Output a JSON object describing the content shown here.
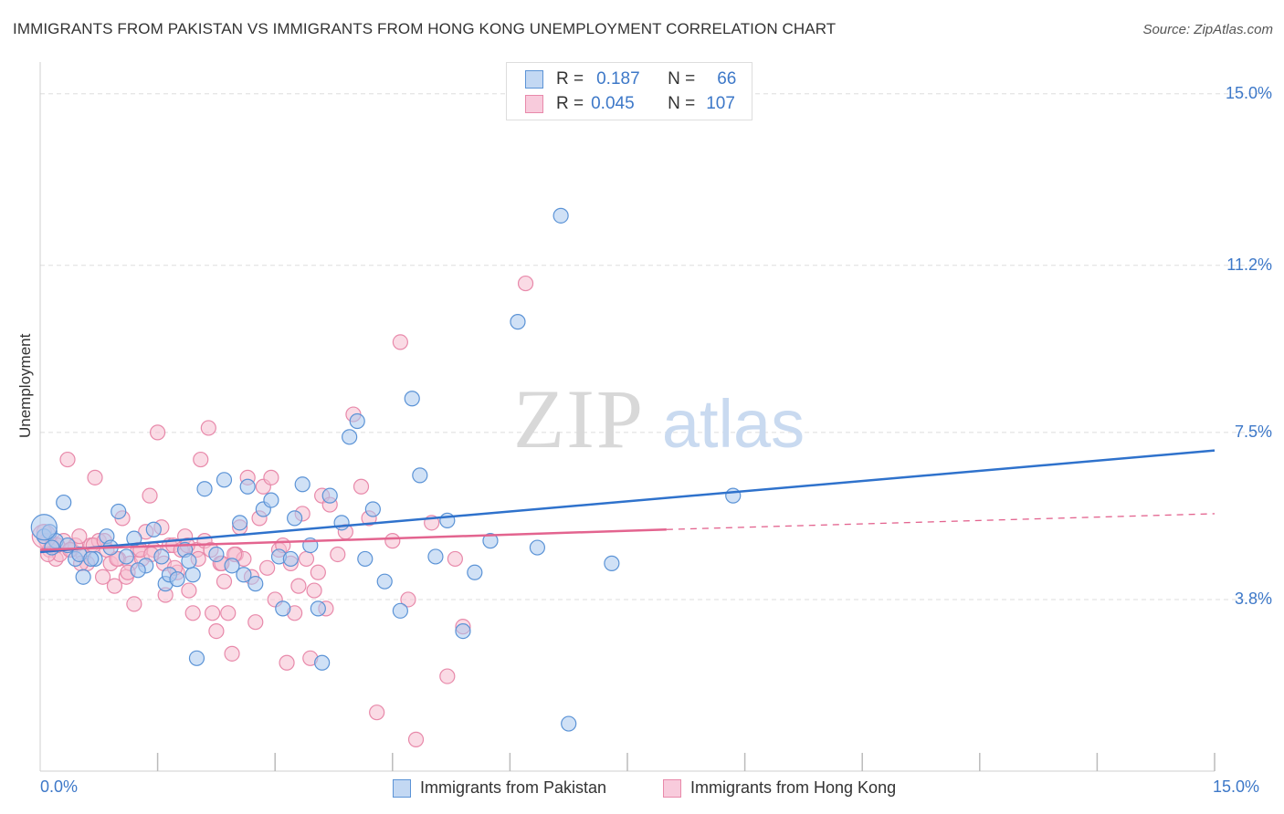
{
  "title": "IMMIGRANTS FROM PAKISTAN VS IMMIGRANTS FROM HONG KONG UNEMPLOYMENT CORRELATION CHART",
  "source": "Source: ZipAtlas.com",
  "watermark": {
    "zip": "ZIP",
    "atlas": "atlas"
  },
  "stats": {
    "pakistan": {
      "r_label": "R =",
      "r_value": "0.187",
      "n_label": "N =",
      "n_value": "66"
    },
    "hongkong": {
      "r_label": "R =",
      "r_value": "0.045",
      "n_label": "N =",
      "n_value": "107"
    }
  },
  "legend": {
    "pakistan": "Immigrants from Pakistan",
    "hongkong": "Immigrants from Hong Kong"
  },
  "colors": {
    "pakistan_fill": "#a9c8ef",
    "pakistan_stroke": "#5b93d6",
    "pakistan_line": "#2f72cc",
    "hongkong_fill": "#f6bdd0",
    "hongkong_stroke": "#e889aa",
    "hongkong_line": "#e3648f",
    "axis_label": "#3d78c8",
    "grid": "#dddddd"
  },
  "chart_data": {
    "type": "scatter",
    "title": "IMMIGRANTS FROM PAKISTAN VS IMMIGRANTS FROM HONG KONG UNEMPLOYMENT CORRELATION CHART",
    "xlabel": "",
    "ylabel": "Unemployment",
    "xlim": [
      0,
      15
    ],
    "ylim": [
      0,
      15.5
    ],
    "x_tick_labels": [
      "0.0%",
      "15.0%"
    ],
    "y_ticks": [
      3.8,
      7.5,
      11.2,
      15.0
    ],
    "y_tick_labels": [
      "3.8%",
      "7.5%",
      "11.2%",
      "15.0%"
    ],
    "series": [
      {
        "name": "Immigrants from Pakistan",
        "x": [
          0.05,
          0.12,
          0.2,
          0.3,
          0.45,
          0.55,
          0.7,
          0.85,
          1.0,
          1.1,
          1.2,
          1.35,
          1.45,
          1.6,
          1.65,
          1.75,
          1.85,
          1.95,
          2.1,
          2.25,
          2.35,
          2.45,
          2.6,
          2.65,
          2.75,
          2.85,
          2.95,
          3.05,
          3.1,
          3.2,
          3.35,
          3.45,
          3.55,
          3.7,
          3.85,
          3.95,
          4.05,
          4.15,
          4.25,
          4.4,
          4.6,
          4.75,
          4.85,
          5.05,
          5.2,
          5.4,
          5.55,
          5.75,
          6.1,
          6.35,
          6.65,
          6.75,
          7.3,
          8.85,
          0.15,
          0.35,
          0.5,
          0.65,
          0.9,
          1.25,
          1.55,
          1.9,
          2.55,
          3.25,
          3.6,
          2.0
        ],
        "y": [
          5.2,
          5.3,
          5.1,
          5.95,
          4.7,
          4.3,
          4.7,
          5.2,
          5.75,
          4.75,
          5.15,
          4.55,
          5.35,
          4.15,
          4.35,
          4.25,
          4.9,
          4.35,
          6.25,
          4.8,
          6.45,
          4.55,
          4.35,
          6.3,
          4.15,
          5.8,
          6.0,
          4.75,
          3.6,
          4.7,
          6.35,
          5.0,
          3.6,
          6.1,
          5.5,
          7.4,
          7.75,
          4.7,
          5.8,
          4.2,
          3.55,
          8.25,
          6.55,
          4.75,
          5.55,
          3.1,
          4.4,
          5.1,
          9.95,
          4.95,
          12.3,
          1.05,
          4.6,
          6.1,
          4.95,
          5.0,
          4.8,
          4.7,
          4.95,
          4.45,
          4.75,
          4.65,
          5.5,
          5.6,
          2.4,
          2.5
        ],
        "trend": {
          "x": [
            0,
            15
          ],
          "y": [
            4.85,
            7.1
          ]
        }
      },
      {
        "name": "Immigrants from Hong Kong",
        "x": [
          0.05,
          0.08,
          0.12,
          0.15,
          0.2,
          0.25,
          0.3,
          0.35,
          0.4,
          0.45,
          0.5,
          0.55,
          0.6,
          0.65,
          0.7,
          0.75,
          0.8,
          0.85,
          0.9,
          0.95,
          1.0,
          1.05,
          1.1,
          1.15,
          1.2,
          1.25,
          1.3,
          1.35,
          1.4,
          1.45,
          1.5,
          1.55,
          1.6,
          1.65,
          1.7,
          1.75,
          1.8,
          1.85,
          1.9,
          1.95,
          2.0,
          2.05,
          2.1,
          2.15,
          2.2,
          2.25,
          2.3,
          2.35,
          2.4,
          2.45,
          2.5,
          2.55,
          2.6,
          2.65,
          2.7,
          2.75,
          2.8,
          2.85,
          2.9,
          2.95,
          3.0,
          3.05,
          3.1,
          3.15,
          3.2,
          3.25,
          3.3,
          3.35,
          3.4,
          3.45,
          3.5,
          3.55,
          3.6,
          3.65,
          3.7,
          3.8,
          3.9,
          4.0,
          4.1,
          4.2,
          4.3,
          4.5,
          4.6,
          4.7,
          4.8,
          5.0,
          5.2,
          5.3,
          5.4,
          6.2,
          0.1,
          0.22,
          0.38,
          0.52,
          0.68,
          0.82,
          0.98,
          1.12,
          1.28,
          1.42,
          1.58,
          1.72,
          1.88,
          2.02,
          2.18,
          2.32,
          2.48
        ],
        "y": [
          5.3,
          5.1,
          4.9,
          5.0,
          4.7,
          4.8,
          5.1,
          6.9,
          4.9,
          5.0,
          5.2,
          4.8,
          4.6,
          5.0,
          6.5,
          5.1,
          4.3,
          4.9,
          4.6,
          4.1,
          4.7,
          5.6,
          4.3,
          4.6,
          3.7,
          4.9,
          4.7,
          5.3,
          6.1,
          4.9,
          7.5,
          5.4,
          3.9,
          5.0,
          5.0,
          4.4,
          4.9,
          5.2,
          4.0,
          3.5,
          4.9,
          6.9,
          5.1,
          7.6,
          3.5,
          3.1,
          4.6,
          4.2,
          3.5,
          2.6,
          4.8,
          5.4,
          4.7,
          6.5,
          4.3,
          3.3,
          5.6,
          6.3,
          4.5,
          6.5,
          3.8,
          4.9,
          5.0,
          2.4,
          4.6,
          3.5,
          4.1,
          5.7,
          4.7,
          2.5,
          4.0,
          4.4,
          6.1,
          3.6,
          5.9,
          4.8,
          5.3,
          7.9,
          6.3,
          5.6,
          1.3,
          5.1,
          9.5,
          3.8,
          0.7,
          5.5,
          2.1,
          4.7,
          3.2,
          10.8,
          4.8,
          5.0,
          4.9,
          4.6,
          5.0,
          5.1,
          4.7,
          4.4,
          4.9,
          4.8,
          4.6,
          4.5,
          5.0,
          4.7,
          4.9,
          4.6,
          4.8
        ],
        "trend_solid": {
          "x": [
            0,
            8
          ],
          "y": [
            4.9,
            5.35
          ]
        },
        "trend_dashed": {
          "x": [
            8,
            15
          ],
          "y": [
            5.35,
            5.7
          ]
        }
      }
    ]
  }
}
